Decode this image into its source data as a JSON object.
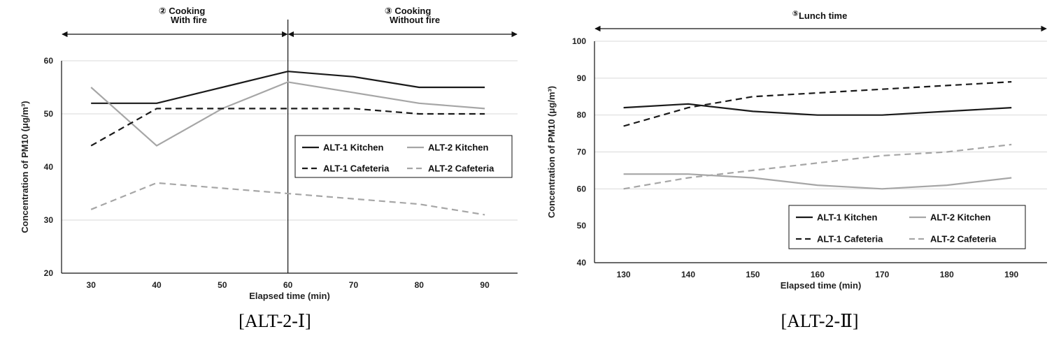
{
  "chart_data": [
    {
      "type": "line",
      "caption": "[ALT-2-Ⅰ]",
      "xlabel": "Elapsed time (min)",
      "ylabel": "Concentration of PM10 (μg/m³)",
      "x": [
        30,
        40,
        50,
        60,
        70,
        80,
        90
      ],
      "xlim": [
        25.5,
        95
      ],
      "ylim": [
        20,
        60
      ],
      "yticks": [
        20,
        30,
        40,
        50,
        60
      ],
      "gridlines": [
        30,
        50,
        60
      ],
      "divider_x": 60,
      "phases": [
        {
          "marker": "②",
          "line1": "Cooking",
          "line2": "With fire",
          "x_from": 25.5,
          "x_to": 60
        },
        {
          "marker": "③",
          "line1": "Cooking",
          "line2": "Without fire",
          "x_from": 60,
          "x_to": 95
        }
      ],
      "series": [
        {
          "name": "ALT-1 Kitchen",
          "color": "#1a1a1a",
          "dash": "solid",
          "values": [
            52,
            52,
            55,
            58,
            57,
            55,
            55
          ]
        },
        {
          "name": "ALT-2 Kitchen",
          "color": "#a6a6a6",
          "dash": "solid",
          "values": [
            55,
            44,
            51,
            56,
            54,
            52,
            51
          ]
        },
        {
          "name": "ALT-1 Cafeteria",
          "color": "#1a1a1a",
          "dash": "dashed",
          "values": [
            44,
            51,
            51,
            51,
            51,
            50,
            50
          ]
        },
        {
          "name": "ALT-2 Cafeteria",
          "color": "#a6a6a6",
          "dash": "dashed",
          "values": [
            32,
            37,
            36,
            35,
            34,
            33,
            31
          ]
        }
      ]
    },
    {
      "type": "line",
      "caption": "[ALT-2-Ⅱ]",
      "xlabel": "Elapsed time (min)",
      "ylabel": "Concentration of PM10 (μg/m³)",
      "x": [
        130,
        140,
        150,
        160,
        170,
        180,
        190
      ],
      "xlim": [
        125.5,
        195.5
      ],
      "ylim": [
        40,
        100
      ],
      "yticks": [
        40,
        50,
        60,
        70,
        80,
        90,
        100
      ],
      "gridlines": [
        60,
        70,
        80,
        90,
        100
      ],
      "phases": [
        {
          "marker": "⑤",
          "line1": "Lunch time",
          "line2": "",
          "x_from": 125.5,
          "x_to": 195.5
        }
      ],
      "series": [
        {
          "name": "ALT-1 Kitchen",
          "color": "#1a1a1a",
          "dash": "solid",
          "values": [
            82,
            83,
            81,
            80,
            80,
            81,
            82
          ]
        },
        {
          "name": "ALT-2 Kitchen",
          "color": "#a6a6a6",
          "dash": "solid",
          "values": [
            64,
            64,
            63,
            61,
            60,
            61,
            63
          ]
        },
        {
          "name": "ALT-1 Cafeteria",
          "color": "#1a1a1a",
          "dash": "dashed",
          "values": [
            77,
            82,
            85,
            86,
            87,
            88,
            89
          ]
        },
        {
          "name": "ALT-2 Cafeteria",
          "color": "#a6a6a6",
          "dash": "dashed",
          "values": [
            60,
            63,
            65,
            67,
            69,
            70,
            72
          ]
        }
      ]
    }
  ]
}
